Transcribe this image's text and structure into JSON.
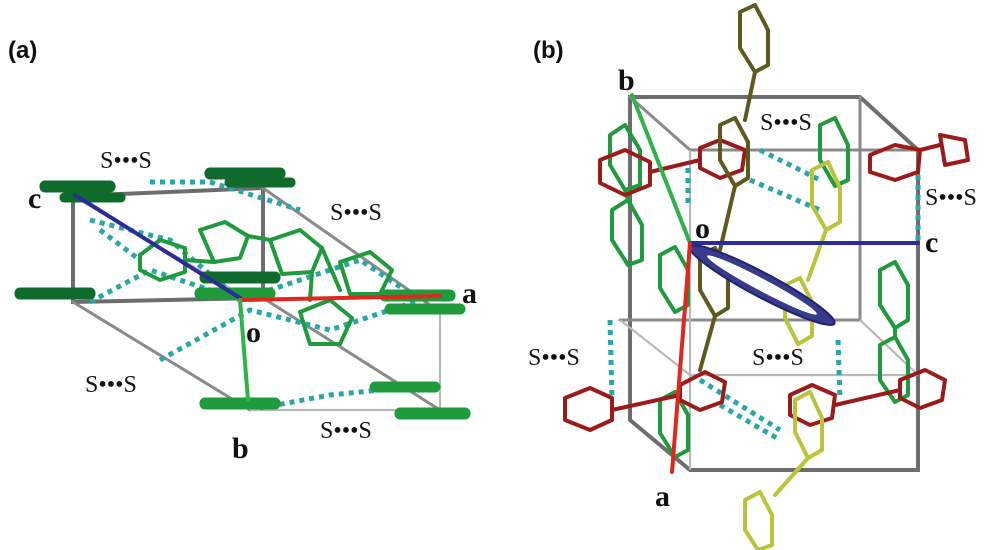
{
  "panels": [
    {
      "id": "a",
      "tag": "(a)",
      "axes": {
        "a": "a",
        "b": "b",
        "c": "c",
        "o": "o"
      },
      "contacts": [
        "S•••S",
        "S•••S",
        "S•••S",
        "S•••S"
      ]
    },
    {
      "id": "b",
      "tag": "(b)",
      "axes": {
        "a": "a",
        "b": "b",
        "c": "c",
        "o": "o"
      },
      "contacts": [
        "S•••S",
        "S•••S",
        "S•••S",
        "S•••S"
      ]
    }
  ],
  "colors": {
    "molecule_green": "#1f9a3c",
    "molecule_dark_green": "#0f6b2b",
    "molecule_red": "#9b1b1b",
    "molecule_olive": "#5c5a1e",
    "molecule_yellow": "#b9c43a",
    "contact_teal": "#2aa6a6",
    "axis_a": "#e0261f",
    "axis_b": "#2fb24a",
    "axis_c": "#2b2b9a",
    "cell_edge": "#8a8a8a"
  }
}
